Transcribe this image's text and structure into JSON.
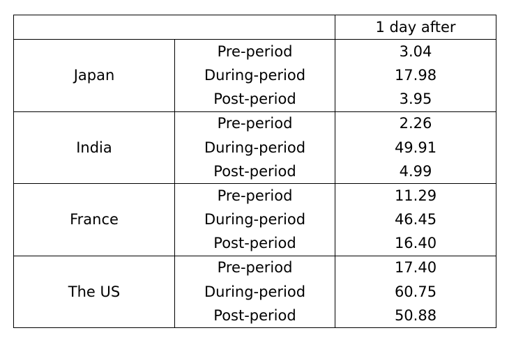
{
  "header": {
    "column_label": "1 day after"
  },
  "groups": [
    {
      "country": "Japan",
      "rows": [
        {
          "period": "Pre-period",
          "value": "3.04"
        },
        {
          "period": "During-period",
          "value": "17.98"
        },
        {
          "period": "Post-period",
          "value": "3.95"
        }
      ]
    },
    {
      "country": "India",
      "rows": [
        {
          "period": "Pre-period",
          "value": "2.26"
        },
        {
          "period": "During-period",
          "value": "49.91"
        },
        {
          "period": "Post-period",
          "value": "4.99"
        }
      ]
    },
    {
      "country": "France",
      "rows": [
        {
          "period": "Pre-period",
          "value": "11.29"
        },
        {
          "period": "During-period",
          "value": "46.45"
        },
        {
          "period": "Post-period",
          "value": "16.40"
        }
      ]
    },
    {
      "country": "The US",
      "rows": [
        {
          "period": "Pre-period",
          "value": "17.40"
        },
        {
          "period": "During-period",
          "value": "60.75"
        },
        {
          "period": "Post-period",
          "value": "50.88"
        }
      ]
    }
  ]
}
